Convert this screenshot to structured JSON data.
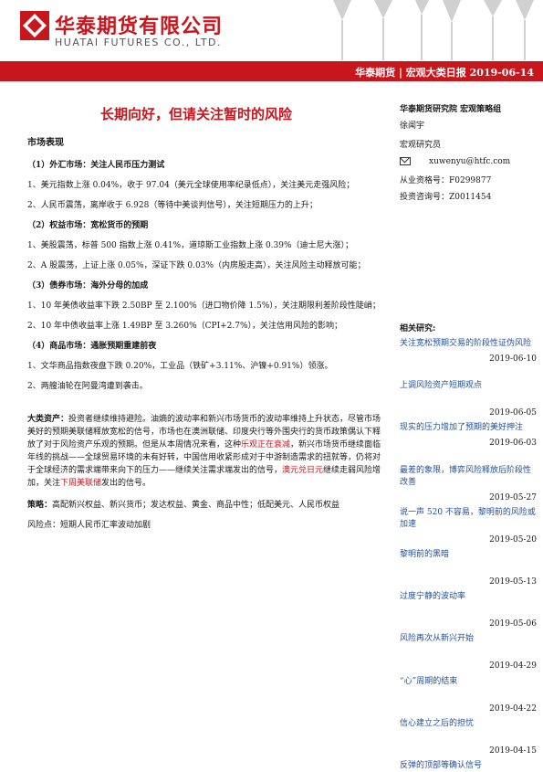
{
  "header": {
    "company_cn": "华泰期货有限公司",
    "company_en": "HUATAI FUTURES CO., LTD.",
    "band_text": "华泰期货 | 宏观大类日报   2019-06-14"
  },
  "title": "长期向好，但请关注暂时的风险",
  "sidebar": {
    "org": "华泰期货研究院  宏观策略组",
    "analyst_name": "徐闻宇",
    "analyst_role": "宏观研究员",
    "email": "xuwenyu@htfc.com",
    "qualification": "从业资格号：F0299877",
    "consult_no": "投资咨询号：Z0011454"
  },
  "sections": {
    "market": "市场表现",
    "fx_head": "（1）外汇市场：关注人民币压力测试",
    "fx1": "1、美元指数上涨 0.04%，收于 97.04（美元全球使用率纪录低点），关注美元走强风险；",
    "fx2": "2、人民币震荡，离岸收于 6.928（等待中美谈判信号），关注短期压力的上升；",
    "eq_head": "（2）权益市场：宽松货币的预期",
    "eq1": "1、美股震荡，标普 500 指数上涨 0.41%，道琼斯工业指数上涨 0.39%（迪士尼大涨）；",
    "eq2": "2、A 股震荡，上证上涨 0.05%，深证下跌 0.03%（内房股走高），关注风险主动释放可能；",
    "bond_head": "（3）债券市场：海外分母的加成",
    "bond1": "1、10 年美债收益率下跌 2.50BP 至 2.100%（进口物价降 1.5%），关注期限利差阶段性陡峭；",
    "bond2": "2、10 年中债收益率上涨 1.49BP 至 3.260%（CPI+2.7%），关注信用风险的影响；",
    "com_head": "（4）商品市场：通胀预期重建前夜",
    "com1": "1、文华商品指数夜盘下跌 0.20%，工业品（铁矿+3.11%、沪镍+0.91%）领涨。",
    "com2": "2、两艘油轮在阿曼湾遭到袭击。"
  },
  "asset": {
    "label": "大类资产：",
    "p1": "投资者继续维持避险。油熵的波动率和新兴市场货币的波动率维持上升状态，尽管市场美好的预期美联储释放宽松的信号，市场也在澳洲联储、印度央行等外围央行的货币政策偶认下释放了对于风险资产乐观的预期。但是从本周情况来看，这种",
    "p1_red": "乐观正在衰减",
    "p2": "，新兴市场货币继续面临年线的挑战——全球贸易环境的未有好转，中国信用收紧形成对于中游制造需求的扭就等，仍将对于全球经济的需求端带来向下的压力——继续关注需求端发出的信号，",
    "p2_red1": "澳元兑日元",
    "p3": "继续走弱风险增加，关注",
    "p3_red2": "下周美联储",
    "p4": "发出的信号。"
  },
  "strategy": {
    "label": "策略：",
    "text": "高配新兴权益、新兴货币；发达权益、黄金、商品中性；低配美元、人民币权益",
    "risk": "风险点：短期人民币汇率波动加剧"
  },
  "related": {
    "title": "相关研究:",
    "items": [
      {
        "title": "关注宽松预期交易的阶段性证伪风险",
        "date": "2019-06-10"
      },
      {
        "title": "上调风险资产短期观点",
        "date": "2019-06-05"
      },
      {
        "title": "现实的压力增加了预期的美好押注",
        "date": "2019-06-03"
      },
      {
        "title": "最差的象限，博弈风险释放后阶段性改善",
        "date": "2019-05-27"
      },
      {
        "title": "说一声 520 不容易，黎明前的风险或加速",
        "date": "2019-05-20"
      },
      {
        "title": "黎明前的黑暗",
        "date": "2019-05-13"
      },
      {
        "title": "过度宁静的波动率",
        "date": "2019-05-06"
      },
      {
        "title": "风险再次从新兴开始",
        "date": "2019-04-29"
      },
      {
        "title": "“心”周期的结束",
        "date": "2019-04-22"
      },
      {
        "title": "信心建立之后的担忧",
        "date": "2019-04-15"
      },
      {
        "title": "反弹的顶部等确认信号",
        "date": ""
      }
    ]
  }
}
